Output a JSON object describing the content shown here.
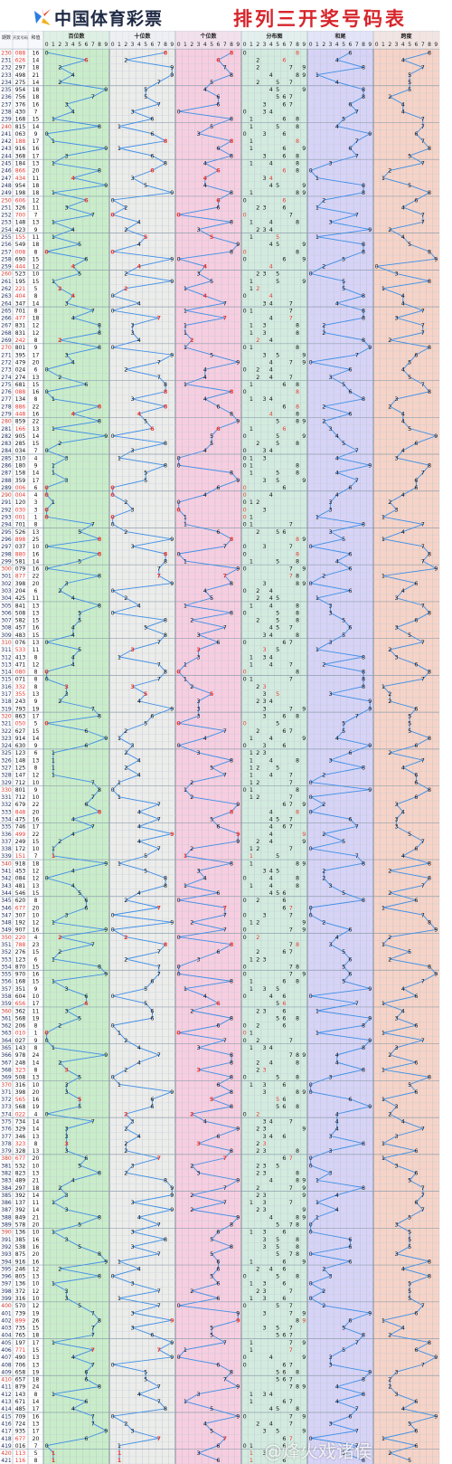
{
  "header": {
    "brand": "中国体育彩票",
    "title": "排列三开奖号码表"
  },
  "watermark": "@烽火戏诸侯",
  "colors": {
    "title_red": "#d7262b",
    "brand_navy": "#1f2a44",
    "line_blue": "#3f8fe6",
    "hot_red": "#e8382f",
    "period_red": "#d33b2f",
    "pos1_bg": "#c9ecc9",
    "pos2_bg": "#ececea",
    "pos3_bg": "#f7cde0",
    "dist_bg": "#d3ebdf",
    "sum_bg": "#d6d3f7",
    "span_bg": "#f6d3c6"
  },
  "chart_data": {
    "type": "table",
    "columns": [
      "期数",
      "开奖号码",
      "和值",
      "百位数",
      "十位数",
      "个位数",
      "分布图",
      "和尾",
      "跨度"
    ],
    "header_labels": {
      "period": "期数",
      "number": "开奖号码",
      "sum": "和值",
      "sections": [
        "百位数",
        "十位数",
        "个位数",
        "分布图",
        "和尾",
        "跨度"
      ]
    },
    "digits": [
      "0",
      "1",
      "2",
      "3",
      "4",
      "5",
      "6",
      "7",
      "8",
      "9"
    ],
    "rows": [
      {
        "period": "230",
        "number": "088"
      },
      {
        "period": "231",
        "number": "626"
      },
      {
        "period": "232",
        "number": "297"
      },
      {
        "period": "233",
        "number": "498"
      },
      {
        "period": "234",
        "number": "275"
      },
      {
        "period": "235",
        "number": "954"
      },
      {
        "period": "236",
        "number": "756"
      },
      {
        "period": "237",
        "number": "376"
      },
      {
        "period": "238",
        "number": "430"
      },
      {
        "period": "239",
        "number": "168"
      },
      {
        "period": "240",
        "number": "815"
      },
      {
        "period": "241",
        "number": "063"
      },
      {
        "period": "242",
        "number": "188"
      },
      {
        "period": "243",
        "number": "916"
      },
      {
        "period": "244",
        "number": "368"
      },
      {
        "period": "245",
        "number": "184"
      },
      {
        "period": "246",
        "number": "866"
      },
      {
        "period": "247",
        "number": "434"
      },
      {
        "period": "248",
        "number": "954"
      },
      {
        "period": "249",
        "number": "198"
      },
      {
        "period": "250",
        "number": "606"
      },
      {
        "period": "251",
        "number": "326"
      },
      {
        "period": "252",
        "number": "700"
      },
      {
        "period": "253",
        "number": "148"
      },
      {
        "period": "254",
        "number": "423"
      },
      {
        "period": "255",
        "number": "155"
      },
      {
        "period": "256",
        "number": "549"
      },
      {
        "period": "257",
        "number": "008"
      },
      {
        "period": "258",
        "number": "690"
      },
      {
        "period": "259",
        "number": "444"
      },
      {
        "period": "260",
        "number": "523"
      },
      {
        "period": "261",
        "number": "195"
      },
      {
        "period": "262",
        "number": "221"
      },
      {
        "period": "263",
        "number": "404"
      },
      {
        "period": "264",
        "number": "347"
      },
      {
        "period": "265",
        "number": "701"
      },
      {
        "period": "266",
        "number": "477"
      },
      {
        "period": "267",
        "number": "831"
      },
      {
        "period": "268",
        "number": "831"
      },
      {
        "period": "269",
        "number": "242"
      },
      {
        "period": "270",
        "number": "801"
      },
      {
        "period": "271",
        "number": "395"
      },
      {
        "period": "272",
        "number": "479"
      },
      {
        "period": "273",
        "number": "024"
      },
      {
        "period": "274",
        "number": "274"
      },
      {
        "period": "275",
        "number": "681"
      },
      {
        "period": "276",
        "number": "088"
      },
      {
        "period": "277",
        "number": "134"
      },
      {
        "period": "278",
        "number": "886"
      },
      {
        "period": "279",
        "number": "448"
      },
      {
        "period": "280",
        "number": "859"
      },
      {
        "period": "281",
        "number": "166"
      },
      {
        "period": "282",
        "number": "905"
      },
      {
        "period": "283",
        "number": "285"
      },
      {
        "period": "284",
        "number": "034"
      },
      {
        "period": "285",
        "number": "310"
      },
      {
        "period": "286",
        "number": "180"
      },
      {
        "period": "287",
        "number": "158"
      },
      {
        "period": "288",
        "number": "359"
      },
      {
        "period": "289",
        "number": "006"
      },
      {
        "period": "290",
        "number": "004"
      },
      {
        "period": "291",
        "number": "120"
      },
      {
        "period": "292",
        "number": "030"
      },
      {
        "period": "293",
        "number": "001"
      },
      {
        "period": "294",
        "number": "701"
      },
      {
        "period": "295",
        "number": "526"
      },
      {
        "period": "296",
        "number": "898"
      },
      {
        "period": "297",
        "number": "037"
      },
      {
        "period": "298",
        "number": "880"
      },
      {
        "period": "299",
        "number": "581"
      },
      {
        "period": "300",
        "number": "079"
      },
      {
        "period": "301",
        "number": "877"
      },
      {
        "period": "302",
        "number": "398"
      },
      {
        "period": "303",
        "number": "204"
      },
      {
        "period": "304",
        "number": "425"
      },
      {
        "period": "305",
        "number": "841"
      },
      {
        "period": "306",
        "number": "508"
      },
      {
        "period": "307",
        "number": "582"
      },
      {
        "period": "308",
        "number": "457"
      },
      {
        "period": "309",
        "number": "483"
      },
      {
        "period": "310",
        "number": "076"
      },
      {
        "period": "311",
        "number": "533"
      },
      {
        "period": "312",
        "number": "413"
      },
      {
        "period": "313",
        "number": "471"
      },
      {
        "period": "314",
        "number": "080"
      },
      {
        "period": "315",
        "number": "071"
      },
      {
        "period": "316",
        "number": "332"
      },
      {
        "period": "317",
        "number": "355"
      },
      {
        "period": "318",
        "number": "243"
      },
      {
        "period": "319",
        "number": "793"
      },
      {
        "period": "320",
        "number": "863"
      },
      {
        "period": "321",
        "number": "050"
      },
      {
        "period": "322",
        "number": "627"
      },
      {
        "period": "323",
        "number": "914"
      },
      {
        "period": "324",
        "number": "630"
      },
      {
        "period": "325",
        "number": "123"
      },
      {
        "period": "326",
        "number": "148"
      },
      {
        "period": "327",
        "number": "125"
      },
      {
        "period": "328",
        "number": "147"
      },
      {
        "period": "329",
        "number": "712"
      },
      {
        "period": "330",
        "number": "801"
      },
      {
        "period": "331",
        "number": "712"
      },
      {
        "period": "332",
        "number": "679"
      },
      {
        "period": "333",
        "number": "848"
      },
      {
        "period": "334",
        "number": "475"
      },
      {
        "period": "335",
        "number": "746"
      },
      {
        "period": "336",
        "number": "499"
      },
      {
        "period": "337",
        "number": "249"
      },
      {
        "period": "338",
        "number": "172"
      },
      {
        "period": "339",
        "number": "151"
      },
      {
        "period": "340",
        "number": "918"
      },
      {
        "period": "341",
        "number": "453"
      },
      {
        "period": "342",
        "number": "084"
      },
      {
        "period": "343",
        "number": "481"
      },
      {
        "period": "344",
        "number": "546"
      },
      {
        "period": "345",
        "number": "620"
      },
      {
        "period": "346",
        "number": "677"
      },
      {
        "period": "347",
        "number": "307"
      },
      {
        "period": "348",
        "number": "192"
      },
      {
        "period": "349",
        "number": "907"
      },
      {
        "period": "350",
        "number": "220"
      },
      {
        "period": "351",
        "number": "788"
      },
      {
        "period": "352",
        "number": "276"
      },
      {
        "period": "353",
        "number": "123"
      },
      {
        "period": "354",
        "number": "870"
      },
      {
        "period": "355",
        "number": "970"
      },
      {
        "period": "356",
        "number": "168"
      },
      {
        "period": "357",
        "number": "351"
      },
      {
        "period": "358",
        "number": "604"
      },
      {
        "period": "359",
        "number": "656"
      },
      {
        "period": "360",
        "number": "362"
      },
      {
        "period": "361",
        "number": "568"
      },
      {
        "period": "362",
        "number": "206"
      },
      {
        "period": "363",
        "number": "010"
      },
      {
        "period": "364",
        "number": "027"
      },
      {
        "period": "365",
        "number": "143"
      },
      {
        "period": "366",
        "number": "978"
      },
      {
        "period": "367",
        "number": "248"
      },
      {
        "period": "368",
        "number": "323"
      },
      {
        "period": "369",
        "number": "508"
      },
      {
        "period": "370",
        "number": "316"
      },
      {
        "period": "371",
        "number": "398"
      },
      {
        "period": "372",
        "number": "565"
      },
      {
        "period": "373",
        "number": "568"
      },
      {
        "period": "374",
        "number": "022"
      },
      {
        "period": "375",
        "number": "734"
      },
      {
        "period": "376",
        "number": "329"
      },
      {
        "period": "377",
        "number": "346"
      },
      {
        "period": "378",
        "number": "323"
      },
      {
        "period": "379",
        "number": "328"
      },
      {
        "period": "380",
        "number": "677"
      },
      {
        "period": "381",
        "number": "532"
      },
      {
        "period": "382",
        "number": "823"
      },
      {
        "period": "383",
        "number": "489"
      },
      {
        "period": "384",
        "number": "297"
      },
      {
        "period": "385",
        "number": "392"
      },
      {
        "period": "386",
        "number": "137"
      },
      {
        "period": "387",
        "number": "392"
      },
      {
        "period": "388",
        "number": "849"
      },
      {
        "period": "389",
        "number": "578"
      },
      {
        "period": "390",
        "number": "136"
      },
      {
        "period": "391",
        "number": "385"
      },
      {
        "period": "392",
        "number": "538"
      },
      {
        "period": "393",
        "number": "875"
      },
      {
        "period": "394",
        "number": "916"
      },
      {
        "period": "395",
        "number": "246"
      },
      {
        "period": "396",
        "number": "805"
      },
      {
        "period": "397",
        "number": "136"
      },
      {
        "period": "398",
        "number": "372"
      },
      {
        "period": "399",
        "number": "316"
      },
      {
        "period": "400",
        "number": "570"
      },
      {
        "period": "401",
        "number": "739"
      },
      {
        "period": "402",
        "number": "899"
      },
      {
        "period": "403",
        "number": "735"
      },
      {
        "period": "404",
        "number": "765"
      },
      {
        "period": "405",
        "number": "197"
      },
      {
        "period": "406",
        "number": "771"
      },
      {
        "period": "407",
        "number": "490"
      },
      {
        "period": "408",
        "number": "706"
      },
      {
        "period": "409",
        "number": "658"
      },
      {
        "period": "410",
        "number": "657"
      },
      {
        "period": "411",
        "number": "879"
      },
      {
        "period": "412",
        "number": "143"
      },
      {
        "period": "413",
        "number": "671"
      },
      {
        "period": "414",
        "number": "485"
      },
      {
        "period": "415",
        "number": "709"
      },
      {
        "period": "416",
        "number": "724"
      },
      {
        "period": "417",
        "number": "935"
      },
      {
        "period": "418",
        "number": "677"
      },
      {
        "period": "419",
        "number": "016"
      },
      {
        "period": "420",
        "number": "113"
      },
      {
        "period": "421",
        "number": "116"
      }
    ]
  }
}
